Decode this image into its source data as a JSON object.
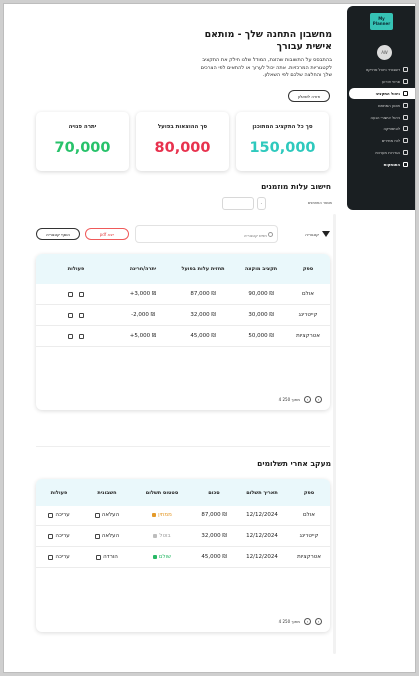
{
  "sidebar": {
    "logo_text": "My Planner",
    "avatar_text": "AW",
    "items": [
      {
        "label": "דשבורד ניהול פרויקט",
        "icon": "dashboard-icon"
      },
      {
        "label": "פרטי אירוע",
        "icon": "event-icon"
      },
      {
        "label": "ניהול התקציב",
        "icon": "wallet-icon"
      },
      {
        "label": "תכנון המתחם",
        "icon": "layout-icon"
      },
      {
        "label": "ניהול אישורי הגעה",
        "icon": "rsvp-icon"
      },
      {
        "label": "לוגיסטיקה",
        "icon": "truck-icon"
      },
      {
        "label": "לוח מחירים",
        "icon": "price-icon"
      },
      {
        "label": "הגדרות מערכת",
        "icon": "settings-icon"
      },
      {
        "label": "התנתקות",
        "icon": "logout-icon"
      }
    ]
  },
  "header": {
    "title": "מחשבון התחנה שלך - מותאם אישית עבורך",
    "description": "בהתבסס על התשובות שהזנת, המודל שלנו חילק את התקציב לקטגוריות המרכזיות. אתה יכול לערוך או להתאים לפי הצרכים שלך והחלצה שלכם לפי השאלון.",
    "back_button": "חזרה לשאלון"
  },
  "stats": {
    "planned_label": "סך כל התקציב המתוכנן",
    "planned_value": "150,000",
    "spent_label": "סך ההוצאות בפועל",
    "spent_value": "80,000",
    "free_label": "יתרה פנויה",
    "free_value": "70,000",
    "colors": {
      "planned": "#2ec9bd",
      "spent": "#e8324e",
      "free": "#27c26a"
    }
  },
  "costs": {
    "title": "חישוב עלות מוזמנים",
    "guests_label": "מספר המוזמנים",
    "guests_value": "-",
    "filter_label": "קטגוריה",
    "search_placeholder": "חפש קטגוריה",
    "pdf_button": "pdf ייצא",
    "add_button": "הוסף קטגוריה",
    "columns": [
      "ספק",
      "תקציב מוקצה",
      "תחזית עלות בפועל",
      "יתרה/חריגה",
      "פעולות"
    ],
    "rows": [
      {
        "supplier": "אולם",
        "allocated": "₪ 90,000",
        "forecast": "₪ 87,000",
        "diff": "₪ 3,000+"
      },
      {
        "supplier": "קייטרינג",
        "allocated": "₪ 30,000",
        "forecast": "₪ 32,000",
        "diff": "₪ 2,000-"
      },
      {
        "supplier": "אטרקציות",
        "allocated": "₪ 50,000",
        "forecast": "₪ 45,000",
        "diff": "₪ 5,000+"
      }
    ],
    "pager_text": "4 מתוך 250"
  },
  "payments": {
    "title": "מעקב אחרי תשלומים",
    "columns": [
      "ספק",
      "תאריך תשלום",
      "סכום",
      "סטטוס תשלום",
      "חשבונית",
      "פעולות"
    ],
    "rows": [
      {
        "supplier": "אולם",
        "date": "12/12/2024",
        "amount": "₪ 87,000",
        "status": "ממתין",
        "status_color": "#e49a2a",
        "invoice": "העלאה",
        "action": "עריכה"
      },
      {
        "supplier": "קייטרינג",
        "date": "12/12/2024",
        "amount": "₪ 32,000",
        "status": "בוטל",
        "status_color": "#9a9a9a",
        "invoice": "העלאה",
        "action": "עריכה"
      },
      {
        "supplier": "אטרקציות",
        "date": "12/12/2024",
        "amount": "₪ 45,000",
        "status": "שולם",
        "status_color": "#27b865",
        "invoice": "הורדה",
        "action": "עריכה"
      }
    ],
    "pager_text": "4 מתוך 250"
  }
}
